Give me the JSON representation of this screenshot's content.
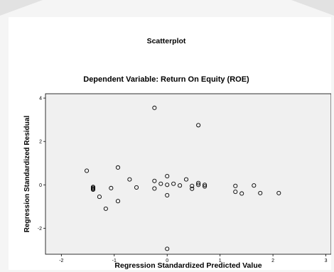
{
  "chart_data": {
    "type": "scatter",
    "title": "Scatterplot",
    "subtitle": "Dependent Variable: Return On Equity (ROE)",
    "xlabel": "Regression Standardized Predicted Value",
    "ylabel": "Regression Standardized Residual",
    "xlim": [
      -2.3,
      3.1
    ],
    "ylim": [
      -3.2,
      4.2
    ],
    "xticks": [
      "-2",
      "-1",
      "0",
      "1",
      "2",
      "3"
    ],
    "yticks": [
      "-2",
      "0",
      "2",
      "4"
    ],
    "grid": false,
    "legend": "none",
    "colors": {
      "plot_bg": "#f0f0f0",
      "marker": "#000000"
    },
    "points": [
      {
        "x": -1.52,
        "y": 0.65
      },
      {
        "x": -1.4,
        "y": -0.1
      },
      {
        "x": -1.4,
        "y": -0.14
      },
      {
        "x": -1.4,
        "y": -0.18
      },
      {
        "x": -1.4,
        "y": -0.22
      },
      {
        "x": -1.28,
        "y": -0.55
      },
      {
        "x": -1.16,
        "y": -1.1
      },
      {
        "x": -1.06,
        "y": -0.15
      },
      {
        "x": -0.93,
        "y": 0.8
      },
      {
        "x": -0.93,
        "y": -0.75
      },
      {
        "x": -0.71,
        "y": 0.25
      },
      {
        "x": -0.58,
        "y": -0.12
      },
      {
        "x": -0.24,
        "y": 3.55
      },
      {
        "x": -0.24,
        "y": 0.18
      },
      {
        "x": -0.24,
        "y": -0.17
      },
      {
        "x": -0.12,
        "y": 0.05
      },
      {
        "x": 0.0,
        "y": 0.4
      },
      {
        "x": 0.0,
        "y": 0.0
      },
      {
        "x": 0.0,
        "y": -0.48
      },
      {
        "x": 0.0,
        "y": -2.95
      },
      {
        "x": 0.12,
        "y": 0.05
      },
      {
        "x": 0.24,
        "y": -0.03
      },
      {
        "x": 0.36,
        "y": 0.25
      },
      {
        "x": 0.47,
        "y": -0.05
      },
      {
        "x": 0.47,
        "y": -0.18
      },
      {
        "x": 0.59,
        "y": 2.75
      },
      {
        "x": 0.59,
        "y": 0.08
      },
      {
        "x": 0.59,
        "y": 0.0
      },
      {
        "x": 0.71,
        "y": 0.0
      },
      {
        "x": 0.71,
        "y": -0.07
      },
      {
        "x": 1.29,
        "y": -0.05
      },
      {
        "x": 1.29,
        "y": -0.32
      },
      {
        "x": 1.41,
        "y": -0.4
      },
      {
        "x": 1.64,
        "y": -0.03
      },
      {
        "x": 1.76,
        "y": -0.38
      },
      {
        "x": 2.11,
        "y": -0.38
      }
    ]
  }
}
